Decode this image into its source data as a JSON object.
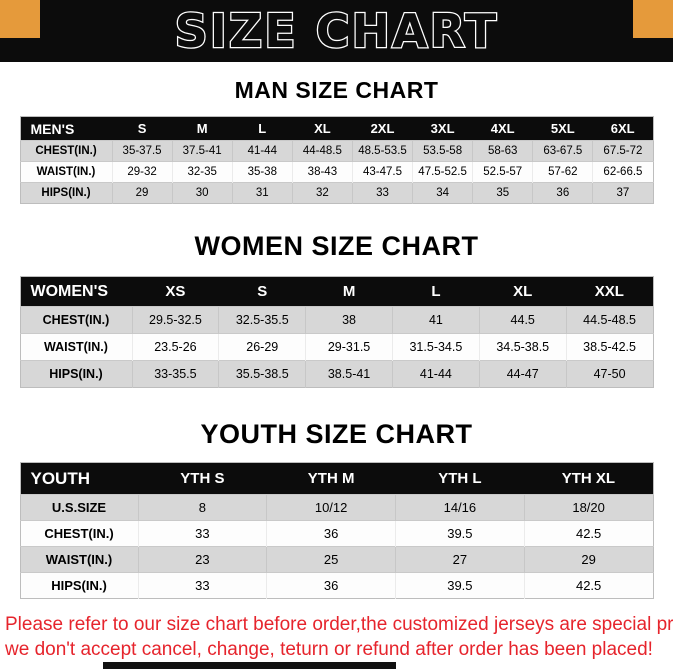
{
  "banner": {
    "title": "SIZE CHART",
    "bg": "#0c0c0c",
    "accent": "#e59a3b"
  },
  "note": {
    "color": "#e6242c",
    "lines": [
      "Please refer to our size chart before order,the customized jerseys are special products,",
      "we don't accept cancel, change, teturn or refund after order has been placed!"
    ]
  },
  "chart_data": [
    {
      "type": "table",
      "title": "MAN SIZE CHART",
      "columns": [
        "MEN'S",
        "S",
        "M",
        "L",
        "XL",
        "2XL",
        "3XL",
        "4XL",
        "5XL",
        "6XL"
      ],
      "rows": [
        [
          "CHEST(IN.)",
          "35-37.5",
          "37.5-41",
          "41-44",
          "44-48.5",
          "48.5-53.5",
          "53.5-58",
          "58-63",
          "63-67.5",
          "67.5-72"
        ],
        [
          "WAIST(IN.)",
          "29-32",
          "32-35",
          "35-38",
          "38-43",
          "43-47.5",
          "47.5-52.5",
          "52.5-57",
          "57-62",
          "62-66.5"
        ],
        [
          "HIPS(IN.)",
          "29",
          "30",
          "31",
          "32",
          "33",
          "34",
          "35",
          "36",
          "37"
        ]
      ]
    },
    {
      "type": "table",
      "title": "WOMEN SIZE CHART",
      "columns": [
        "WOMEN'S",
        "XS",
        "S",
        "M",
        "L",
        "XL",
        "XXL"
      ],
      "rows": [
        [
          "CHEST(IN.)",
          "29.5-32.5",
          "32.5-35.5",
          "38",
          "41",
          "44.5",
          "44.5-48.5"
        ],
        [
          "WAIST(IN.)",
          "23.5-26",
          "26-29",
          "29-31.5",
          "31.5-34.5",
          "34.5-38.5",
          "38.5-42.5"
        ],
        [
          "HIPS(IN.)",
          "33-35.5",
          "35.5-38.5",
          "38.5-41",
          "41-44",
          "44-47",
          "47-50"
        ]
      ]
    },
    {
      "type": "table",
      "title": "YOUTH SIZE CHART",
      "columns": [
        "YOUTH",
        "YTH S",
        "YTH M",
        "YTH L",
        "YTH XL"
      ],
      "rows": [
        [
          "U.S.SIZE",
          "8",
          "10/12",
          "14/16",
          "18/20"
        ],
        [
          "CHEST(IN.)",
          "33",
          "36",
          "39.5",
          "42.5"
        ],
        [
          "WAIST(IN.)",
          "23",
          "25",
          "27",
          "29"
        ],
        [
          "HIPS(IN.)",
          "33",
          "36",
          "39.5",
          "42.5"
        ]
      ]
    }
  ]
}
